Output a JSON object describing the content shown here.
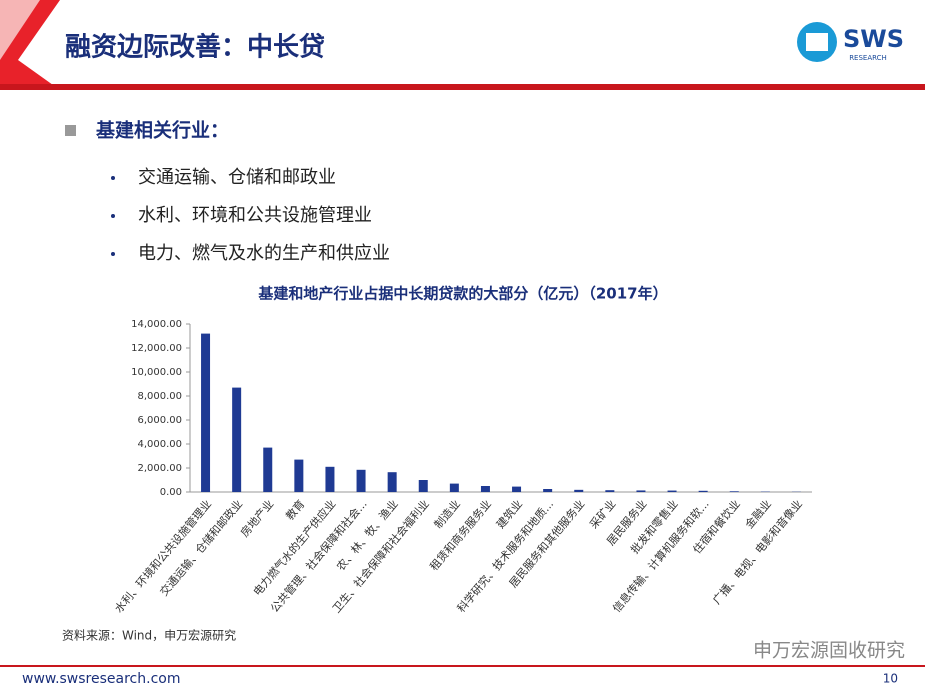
{
  "header": {
    "title": "融资边际改善：中长贷",
    "logo": "SWS",
    "logo_sub": "RESEARCH"
  },
  "section": "基建相关行业：",
  "bullets": [
    "交通运输、仓储和邮政业",
    "水利、环境和公共设施管理业",
    "电力、燃气及水的生产和供应业"
  ],
  "chart_data": {
    "type": "bar",
    "title": "基建和地产行业占据中长期贷款的大部分（亿元）（2017年）",
    "categories": [
      "水利、环境和公共设施管理业",
      "交通运输、仓储和邮政业",
      "房地产业",
      "教育",
      "电力燃气水的生产供应业",
      "公共管理、社会保障和社会...",
      "农、林、牧、渔业",
      "卫生、社会保障和社会福利业",
      "制造业",
      "租赁和商务服务业",
      "建筑业",
      "科学研究、技术服务和地质...",
      "居民服务和其他服务业",
      "采矿业",
      "居民服务业",
      "批发和零售业",
      "信息传输、计算机服务和软...",
      "住宿和餐饮业",
      "金融业",
      "广播、电视、电影和音像业"
    ],
    "values": [
      13200,
      8700,
      3700,
      2700,
      2100,
      1850,
      1650,
      1000,
      700,
      500,
      450,
      250,
      180,
      150,
      130,
      120,
      100,
      60,
      30,
      20
    ],
    "color": "#1f3a93",
    "ylim": [
      0,
      14000
    ],
    "yticks": [
      {
        "value": 0,
        "label": "0.00"
      },
      {
        "value": 2000,
        "label": "2,000.00"
      },
      {
        "value": 4000,
        "label": "4,000.00"
      },
      {
        "value": 6000,
        "label": "6,000.00"
      },
      {
        "value": 8000,
        "label": "8,000.00"
      },
      {
        "value": 10000,
        "label": "10,000.00"
      },
      {
        "value": 12000,
        "label": "12,000.00"
      },
      {
        "value": 14000,
        "label": "14,000.00"
      }
    ],
    "grid": false
  },
  "source": "资料来源：Wind，申万宏源研究",
  "watermark": "申万宏源固收研究",
  "footer": {
    "url": "www.swsresearch.com",
    "page": "10"
  }
}
